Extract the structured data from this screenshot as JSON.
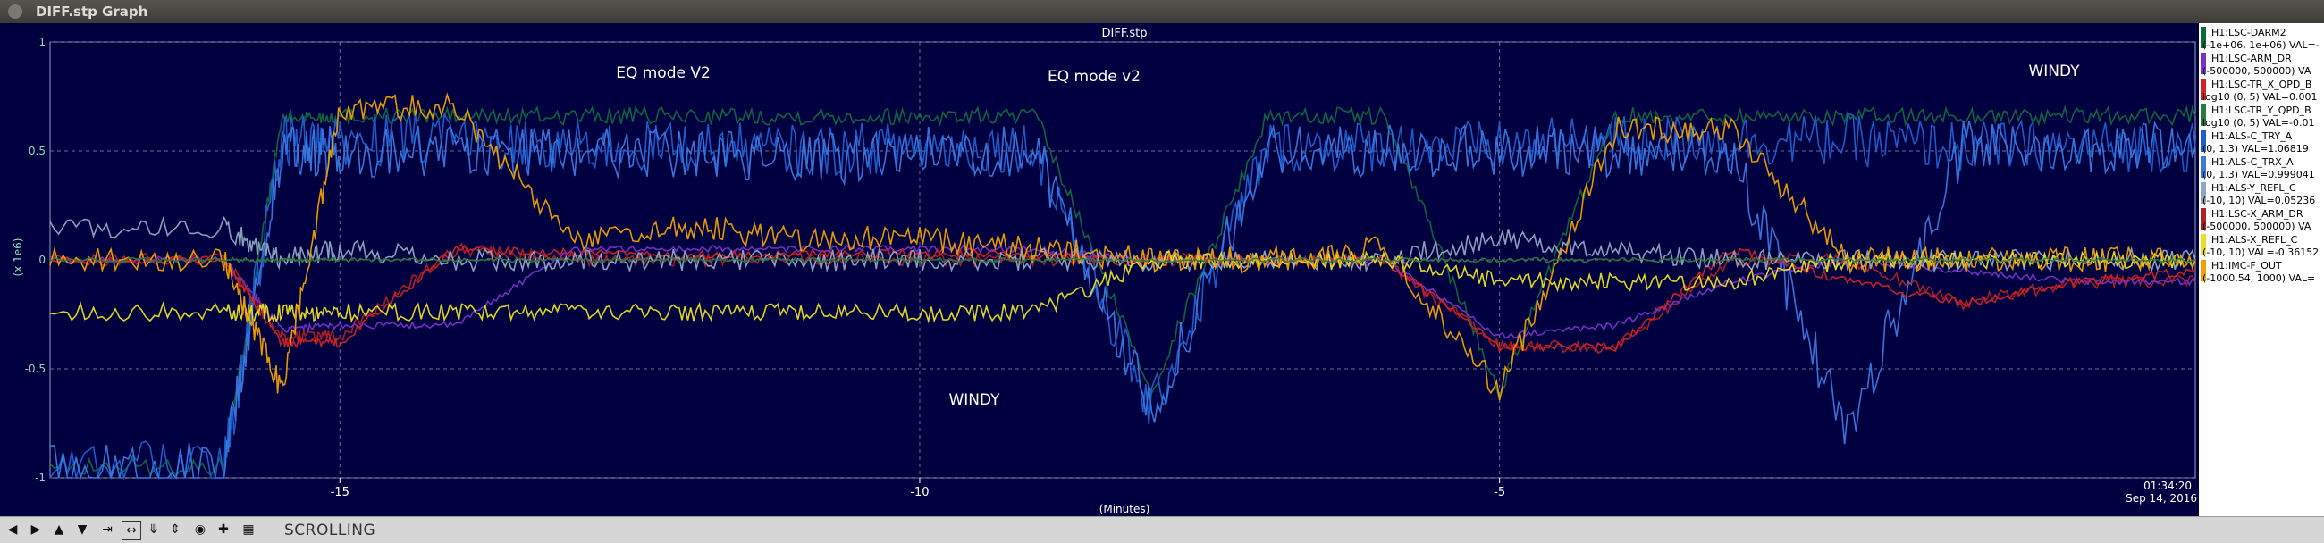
{
  "window": {
    "title": "DIFF.stp Graph"
  },
  "plot": {
    "title": "DIFF.stp",
    "ylabel": "(x 1e6)",
    "xlabel": "(Minutes)",
    "yticks": [
      "1",
      "0.5",
      "0",
      "-0.5",
      "-1"
    ],
    "xticks": [
      "-15",
      "-10",
      "-5"
    ],
    "end_time": "01:34:20",
    "end_date": "Sep 14, 2016",
    "annotations": [
      "EQ mode V2",
      "EQ mode v2",
      "WINDY",
      "WINDY"
    ]
  },
  "legend": [
    {
      "name": "H1:LSC-DARM2",
      "range": "(-1e+06, 1e+06) VAL=-",
      "color": "#0d6b3b"
    },
    {
      "name": "H1:LSC-ARM_DR",
      "range": "(-500000, 500000) VA",
      "color": "#7a30c8"
    },
    {
      "name": "H1:LSC-TR_X_QPD_B",
      "range": "log10 (0, 5) VAL=0.001",
      "color": "#d22222"
    },
    {
      "name": "H1:LSC-TR_Y_QPD_B",
      "range": "log10 (0, 5) VAL=-0.01",
      "color": "#2a7a3a"
    },
    {
      "name": "H1:ALS-C_TRY_A",
      "range": "(0, 1.3) VAL=1.06819",
      "color": "#1f5fd0"
    },
    {
      "name": "H1:ALS-C_TRX_A",
      "range": "(0, 1.3) VAL=0.999041",
      "color": "#3a78e0"
    },
    {
      "name": "H1:ALS-Y_REFL_C",
      "range": "(-10, 10) VAL=0.05236",
      "color": "#8fa8c0"
    },
    {
      "name": "H1:LSC-X_ARM_DR",
      "range": "(-500000, 500000) VA",
      "color": "#b02020"
    },
    {
      "name": "H1:ALS-X_REFL_C",
      "range": "(-10, 10) VAL=-0.36152",
      "color": "#e8e020"
    },
    {
      "name": "H1:IMC-F_OUT",
      "range": "(-1000.54, 1000) VAL=",
      "color": "#f0a000"
    }
  ],
  "toolbar": {
    "status": "SCROLLING",
    "buttons": [
      "arrow-left-icon",
      "arrow-right-icon",
      "arrow-up-icon",
      "arrow-down-icon",
      "zoom-x-in-icon",
      "zoom-x-out-icon",
      "zoom-y-in-icon",
      "zoom-y-out-icon",
      "record-icon",
      "add-icon",
      "image-icon"
    ]
  },
  "chart_data": {
    "type": "line",
    "title": "DIFF.stp",
    "xlabel": "(Minutes)",
    "ylabel": "(x 1e6)",
    "xlim": [
      -17.5,
      1.0
    ],
    "ylim": [
      -1,
      1
    ],
    "x": [
      -17.5,
      -16.0,
      -15.5,
      -15.0,
      -14.0,
      -13.0,
      -12.0,
      -11.0,
      -10.0,
      -9.0,
      -8.0,
      -7.0,
      -6.0,
      -5.0,
      -4.0,
      -3.0,
      -2.0,
      -1.0,
      0.0,
      1.0
    ],
    "series": [
      {
        "name": "H1:LSC-DARM2",
        "values": [
          -0.95,
          -0.95,
          0.65,
          0.66,
          0.66,
          0.66,
          0.66,
          0.66,
          0.66,
          0.66,
          -0.6,
          0.66,
          0.66,
          -0.6,
          0.66,
          0.66,
          0.66,
          0.66,
          0.66,
          0.66
        ]
      },
      {
        "name": "H1:LSC-ARM_DR",
        "values": [
          0.0,
          0.0,
          -0.32,
          -0.3,
          -0.3,
          0.05,
          0.05,
          0.05,
          0.05,
          0.05,
          0.0,
          0.0,
          0.0,
          -0.35,
          -0.3,
          -0.1,
          0.0,
          -0.05,
          -0.1,
          -0.1
        ]
      },
      {
        "name": "H1:LSC-TR_X_QPD_B",
        "values": [
          0.0,
          0.0,
          -0.38,
          -0.38,
          0.05,
          0.03,
          0.02,
          0.03,
          0.03,
          0.02,
          0.0,
          0.0,
          0.0,
          -0.4,
          -0.4,
          0.05,
          -0.1,
          -0.2,
          -0.1,
          -0.05
        ]
      },
      {
        "name": "H1:LSC-TR_Y_QPD_B",
        "values": [
          0.0,
          0.0,
          0.0,
          0.0,
          0.0,
          0.0,
          0.0,
          0.0,
          0.0,
          0.0,
          0.0,
          0.0,
          0.0,
          0.0,
          0.0,
          0.0,
          0.0,
          0.0,
          0.0,
          0.0
        ]
      },
      {
        "name": "H1:ALS-C_TRY_A",
        "values": [
          -0.95,
          -0.95,
          0.55,
          0.55,
          0.55,
          0.52,
          0.52,
          0.5,
          0.52,
          0.52,
          -0.7,
          0.52,
          0.52,
          0.52,
          0.55,
          0.55,
          0.55,
          0.52,
          0.52,
          0.52
        ]
      },
      {
        "name": "H1:ALS-C_TRX_A",
        "values": [
          -0.95,
          -0.95,
          0.5,
          0.5,
          0.5,
          0.5,
          0.48,
          0.45,
          0.5,
          0.5,
          -0.7,
          0.5,
          0.5,
          0.5,
          0.5,
          0.5,
          -0.8,
          0.52,
          0.52,
          0.52
        ]
      },
      {
        "name": "H1:ALS-Y_REFL_C",
        "values": [
          0.15,
          0.15,
          0.0,
          0.05,
          0.0,
          0.0,
          0.0,
          0.0,
          0.0,
          0.0,
          0.0,
          0.0,
          0.0,
          0.1,
          0.05,
          0.0,
          0.0,
          0.0,
          0.0,
          0.0
        ]
      },
      {
        "name": "H1:LSC-X_ARM_DR",
        "values": [
          0.0,
          0.0,
          -0.35,
          -0.35,
          0.05,
          0.0,
          0.0,
          0.0,
          0.0,
          0.0,
          0.0,
          0.0,
          0.0,
          -0.4,
          -0.4,
          0.0,
          0.0,
          -0.2,
          -0.1,
          -0.1
        ]
      },
      {
        "name": "H1:ALS-X_REFL_C",
        "values": [
          -0.24,
          -0.24,
          -0.24,
          -0.24,
          -0.24,
          -0.24,
          -0.24,
          -0.24,
          -0.24,
          -0.24,
          0.0,
          0.0,
          0.0,
          -0.1,
          -0.1,
          -0.1,
          0.0,
          0.0,
          0.0,
          0.0
        ]
      },
      {
        "name": "H1:IMC-F_OUT",
        "values": [
          0.0,
          0.0,
          -0.6,
          0.7,
          0.7,
          0.1,
          0.15,
          0.1,
          0.1,
          0.05,
          0.0,
          0.0,
          0.05,
          -0.6,
          0.6,
          0.6,
          0.0,
          0.0,
          0.0,
          0.0
        ]
      }
    ],
    "grid": true,
    "legend_position": "right"
  }
}
